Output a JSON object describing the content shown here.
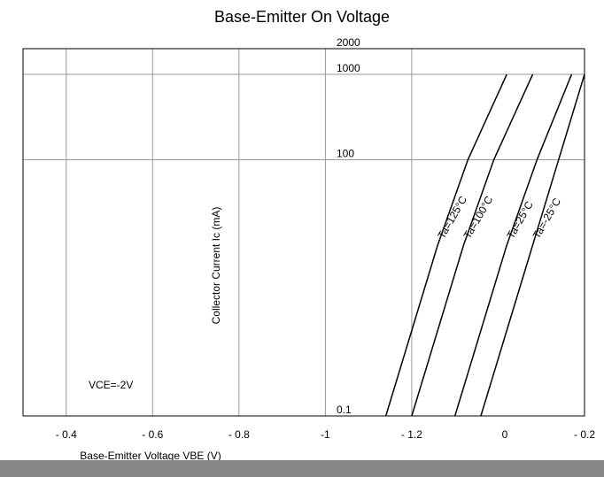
{
  "chart_data": {
    "type": "line",
    "title": "Base-Emitter On Voltage",
    "xlabel": "Base-Emitter Voltage VBE (V)",
    "ylabel": "Collector Current Ic (mA)",
    "annotations": [
      "VCE=-2V",
      "0",
      "- 0.2"
    ],
    "log_y": true,
    "grid": true,
    "xlim": [
      -0.3,
      -1.6
    ],
    "xticks": [
      {
        "value": -0.4,
        "label": "- 0.4"
      },
      {
        "value": -0.6,
        "label": "- 0.6"
      },
      {
        "value": -0.8,
        "label": "- 0.8"
      },
      -1,
      {
        "value": -1.2,
        "label": "- 1.2"
      }
    ],
    "ylim": [
      0.1,
      2000
    ],
    "yticks": [
      0.1,
      100,
      1000,
      2000
    ],
    "series": [
      {
        "name": "Ta=125°C",
        "color": "#000000",
        "x": [
          -1.14,
          -1.2,
          -1.26,
          -1.33,
          -1.42
        ],
        "values": [
          0.1,
          1,
          10,
          100,
          1000
        ]
      },
      {
        "name": "Ta=100°C",
        "color": "#000000",
        "x": [
          -1.2,
          -1.26,
          -1.32,
          -1.39,
          -1.48
        ],
        "values": [
          0.1,
          1,
          10,
          100,
          1000
        ]
      },
      {
        "name": "Ta=25°C",
        "color": "#000000",
        "x": [
          -1.3,
          -1.36,
          -1.42,
          -1.49,
          -1.57
        ],
        "values": [
          0.1,
          1,
          10,
          100,
          1000
        ]
      },
      {
        "name": "Ta=-25°C",
        "color": "#000000",
        "x": [
          -1.36,
          -1.42,
          -1.48,
          -1.54,
          -1.6
        ],
        "values": [
          0.1,
          1,
          10,
          100,
          1000
        ]
      }
    ]
  }
}
